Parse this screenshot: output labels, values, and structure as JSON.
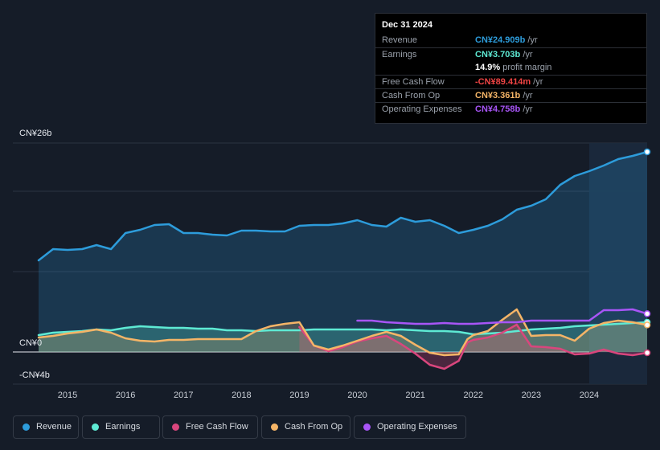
{
  "tooltip": {
    "date": "Dec 31 2024",
    "rows": [
      {
        "label": "Revenue",
        "value": "CN¥24.909b",
        "unit": " /yr",
        "color": "#2d9cdb"
      },
      {
        "label": "Earnings",
        "value": "CN¥3.703b",
        "unit": " /yr",
        "color": "#5eead4"
      },
      {
        "label": "",
        "pct": "14.9%",
        "text": " profit margin"
      },
      {
        "label": "Free Cash Flow",
        "value": "-CN¥89.414m",
        "unit": " /yr",
        "color": "#ef4444"
      },
      {
        "label": "Cash From Op",
        "value": "CN¥3.361b",
        "unit": " /yr",
        "color": "#f5b567"
      },
      {
        "label": "Operating Expenses",
        "value": "CN¥4.758b",
        "unit": " /yr",
        "color": "#a855f7"
      }
    ]
  },
  "legend": [
    {
      "label": "Revenue",
      "color": "#2d9cdb"
    },
    {
      "label": "Earnings",
      "color": "#5eead4"
    },
    {
      "label": "Free Cash Flow",
      "color": "#d9467d"
    },
    {
      "label": "Cash From Op",
      "color": "#f5b567"
    },
    {
      "label": "Operating Expenses",
      "color": "#a855f7"
    }
  ],
  "chart_data": {
    "type": "area",
    "title": "",
    "xlabel": "",
    "ylabel": "",
    "ylim": [
      -4,
      26
    ],
    "xlim": [
      2014.5,
      2025.0
    ],
    "y_tick_labels": [
      {
        "value": 26,
        "label": "CN¥26b"
      },
      {
        "value": 0,
        "label": "CN¥0"
      },
      {
        "value": -4,
        "label": "-CN¥4b"
      }
    ],
    "x_ticks": [
      "2015",
      "2016",
      "2017",
      "2018",
      "2019",
      "2020",
      "2021",
      "2022",
      "2023",
      "2024"
    ],
    "x_tick_values": [
      2015,
      2016,
      2017,
      2018,
      2019,
      2020,
      2021,
      2022,
      2023,
      2024
    ],
    "highlight_from": 2024.0,
    "series": [
      {
        "name": "Revenue",
        "color": "#2d9cdb",
        "fill": true,
        "end_marker": true,
        "x": [
          2014.5,
          2014.75,
          2015.0,
          2015.25,
          2015.5,
          2015.75,
          2016.0,
          2016.25,
          2016.5,
          2016.75,
          2017.0,
          2017.25,
          2017.5,
          2017.75,
          2018.0,
          2018.25,
          2018.5,
          2018.75,
          2019.0,
          2019.25,
          2019.5,
          2019.75,
          2020.0,
          2020.25,
          2020.5,
          2020.75,
          2021.0,
          2021.25,
          2021.5,
          2021.75,
          2022.0,
          2022.25,
          2022.5,
          2022.75,
          2023.0,
          2023.25,
          2023.5,
          2023.75,
          2024.0,
          2024.25,
          2024.5,
          2024.75,
          2025.0
        ],
        "values": [
          11.4,
          12.8,
          12.7,
          12.8,
          13.3,
          12.8,
          14.8,
          15.2,
          15.8,
          15.9,
          14.8,
          14.8,
          14.6,
          14.5,
          15.1,
          15.1,
          15.0,
          15.0,
          15.7,
          15.8,
          15.8,
          16.0,
          16.4,
          15.8,
          15.6,
          16.7,
          16.2,
          16.4,
          15.7,
          14.8,
          15.2,
          15.7,
          16.5,
          17.7,
          18.2,
          19.0,
          20.8,
          21.9,
          22.5,
          23.2,
          24.0,
          24.4,
          24.9
        ]
      },
      {
        "name": "Earnings",
        "color": "#5eead4",
        "fill": true,
        "end_marker": true,
        "x": [
          2014.5,
          2014.75,
          2015.0,
          2015.25,
          2015.5,
          2015.75,
          2016.0,
          2016.25,
          2016.5,
          2016.75,
          2017.0,
          2017.25,
          2017.5,
          2017.75,
          2018.0,
          2018.25,
          2018.5,
          2018.75,
          2019.0,
          2019.25,
          2019.5,
          2019.75,
          2020.0,
          2020.25,
          2020.5,
          2020.75,
          2021.0,
          2021.25,
          2021.5,
          2021.75,
          2022.0,
          2022.25,
          2022.5,
          2022.75,
          2023.0,
          2023.25,
          2023.5,
          2023.75,
          2024.0,
          2024.25,
          2024.5,
          2024.75,
          2025.0
        ],
        "values": [
          2.1,
          2.4,
          2.5,
          2.6,
          2.8,
          2.7,
          3.0,
          3.2,
          3.1,
          3.0,
          3.0,
          2.9,
          2.9,
          2.7,
          2.7,
          2.6,
          2.7,
          2.7,
          2.7,
          2.8,
          2.8,
          2.8,
          2.8,
          2.8,
          2.7,
          2.8,
          2.7,
          2.6,
          2.6,
          2.5,
          2.2,
          2.3,
          2.4,
          2.6,
          2.8,
          2.9,
          3.0,
          3.2,
          3.3,
          3.4,
          3.5,
          3.6,
          3.7
        ]
      },
      {
        "name": "Free Cash Flow",
        "color": "#d9467d",
        "fill": true,
        "end_marker": true,
        "x": [
          2019.0,
          2019.25,
          2019.5,
          2019.75,
          2020.0,
          2020.25,
          2020.5,
          2020.75,
          2021.0,
          2021.25,
          2021.5,
          2021.75,
          2021.9,
          2022.0,
          2022.25,
          2022.5,
          2022.75,
          2023.0,
          2023.25,
          2023.5,
          2023.75,
          2024.0,
          2024.25,
          2024.5,
          2024.75,
          2025.0
        ],
        "values": [
          3.1,
          0.8,
          0.1,
          0.6,
          1.3,
          1.7,
          2.0,
          1.0,
          -0.2,
          -1.6,
          -2.1,
          -1.1,
          1.2,
          1.5,
          1.8,
          2.4,
          3.4,
          0.7,
          0.6,
          0.4,
          -0.3,
          -0.2,
          0.3,
          -0.2,
          -0.4,
          -0.1
        ]
      },
      {
        "name": "Cash From Op",
        "color": "#f5b567",
        "fill": true,
        "end_marker": true,
        "x": [
          2014.5,
          2014.75,
          2015.0,
          2015.25,
          2015.5,
          2015.75,
          2016.0,
          2016.25,
          2016.5,
          2016.75,
          2017.0,
          2017.25,
          2017.5,
          2017.75,
          2018.0,
          2018.25,
          2018.5,
          2018.75,
          2019.0,
          2019.25,
          2019.5,
          2019.75,
          2020.0,
          2020.25,
          2020.5,
          2020.75,
          2021.0,
          2021.25,
          2021.5,
          2021.75,
          2021.9,
          2022.0,
          2022.25,
          2022.5,
          2022.75,
          2023.0,
          2023.25,
          2023.5,
          2023.75,
          2024.0,
          2024.25,
          2024.5,
          2024.75,
          2025.0
        ],
        "values": [
          1.8,
          2.0,
          2.3,
          2.5,
          2.8,
          2.4,
          1.7,
          1.4,
          1.3,
          1.5,
          1.5,
          1.6,
          1.6,
          1.6,
          1.6,
          2.6,
          3.2,
          3.5,
          3.7,
          0.8,
          0.3,
          0.8,
          1.4,
          2.0,
          2.5,
          2.0,
          0.9,
          -0.1,
          -0.4,
          -0.3,
          1.6,
          2.1,
          2.6,
          4.0,
          5.3,
          2.0,
          2.1,
          2.1,
          1.4,
          2.9,
          3.6,
          3.9,
          3.7,
          3.36
        ]
      },
      {
        "name": "Operating Expenses",
        "color": "#a855f7",
        "fill": false,
        "end_marker": true,
        "x": [
          2020.0,
          2020.25,
          2020.5,
          2020.75,
          2021.0,
          2021.25,
          2021.5,
          2021.75,
          2022.0,
          2022.25,
          2022.5,
          2022.75,
          2023.0,
          2023.25,
          2023.5,
          2023.75,
          2024.0,
          2024.25,
          2024.5,
          2024.75,
          2025.0
        ],
        "values": [
          3.9,
          3.9,
          3.7,
          3.6,
          3.5,
          3.5,
          3.6,
          3.5,
          3.5,
          3.6,
          3.7,
          3.7,
          3.9,
          3.9,
          3.9,
          3.9,
          3.9,
          5.2,
          5.2,
          5.3,
          4.76
        ]
      }
    ]
  }
}
